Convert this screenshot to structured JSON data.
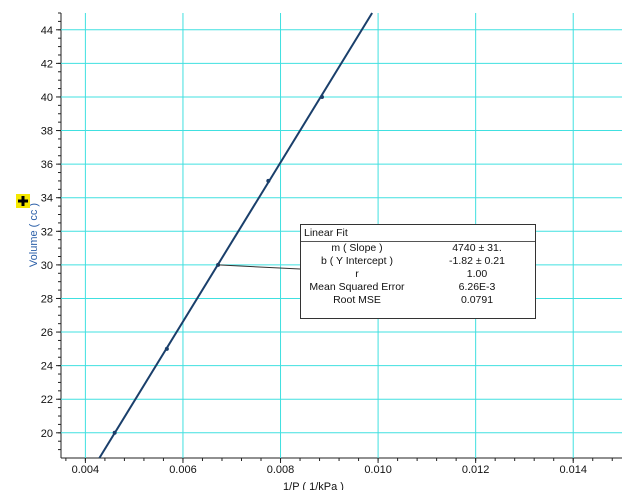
{
  "chart_data": {
    "type": "scatter",
    "xlabel": "1/P ( 1/kPa )",
    "ylabel": "Volume ( cc )",
    "xlim": [
      0.0035,
      0.015
    ],
    "ylim": [
      18.5,
      45
    ],
    "x_ticks": [
      0.004,
      0.006,
      0.008,
      0.01,
      0.012,
      0.014
    ],
    "x_tick_labels": [
      "0.004",
      "0.006",
      "0.008",
      "0.010",
      "0.012",
      "0.014"
    ],
    "y_ticks": [
      20,
      22,
      24,
      26,
      28,
      30,
      32,
      34,
      36,
      38,
      40,
      42,
      44
    ],
    "y_tick_labels": [
      "20",
      "22",
      "24",
      "26",
      "28",
      "30",
      "32",
      "34",
      "36",
      "38",
      "40",
      "42",
      "44"
    ],
    "grid": true,
    "series": [
      {
        "x": [
          0.0046,
          0.00567,
          0.00672,
          0.00775,
          0.00885
        ],
        "y": [
          20,
          25,
          30,
          35,
          40
        ],
        "color": "#1a3f6b"
      }
    ],
    "fit_line": {
      "slope": 4740,
      "intercept": -1.82,
      "color": "#1a3f6b"
    },
    "annotation": {
      "x": 0.00672,
      "y": 30
    },
    "linear_fit": {
      "title": "Linear Fit",
      "rows": [
        {
          "label": "m ( Slope )",
          "value": "4740 ±  31."
        },
        {
          "label": "b ( Y Intercept )",
          "value": "-1.82 ± 0.21"
        },
        {
          "label": "r",
          "value": "1.00"
        },
        {
          "label": "Mean Squared Error",
          "value": "6.26E-3"
        },
        {
          "label": "Root MSE",
          "value": "0.0791"
        }
      ]
    },
    "colors": {
      "grid": "#40e0e0",
      "axis_title": "#2b5fa8",
      "cursor": "#f5e800"
    }
  }
}
